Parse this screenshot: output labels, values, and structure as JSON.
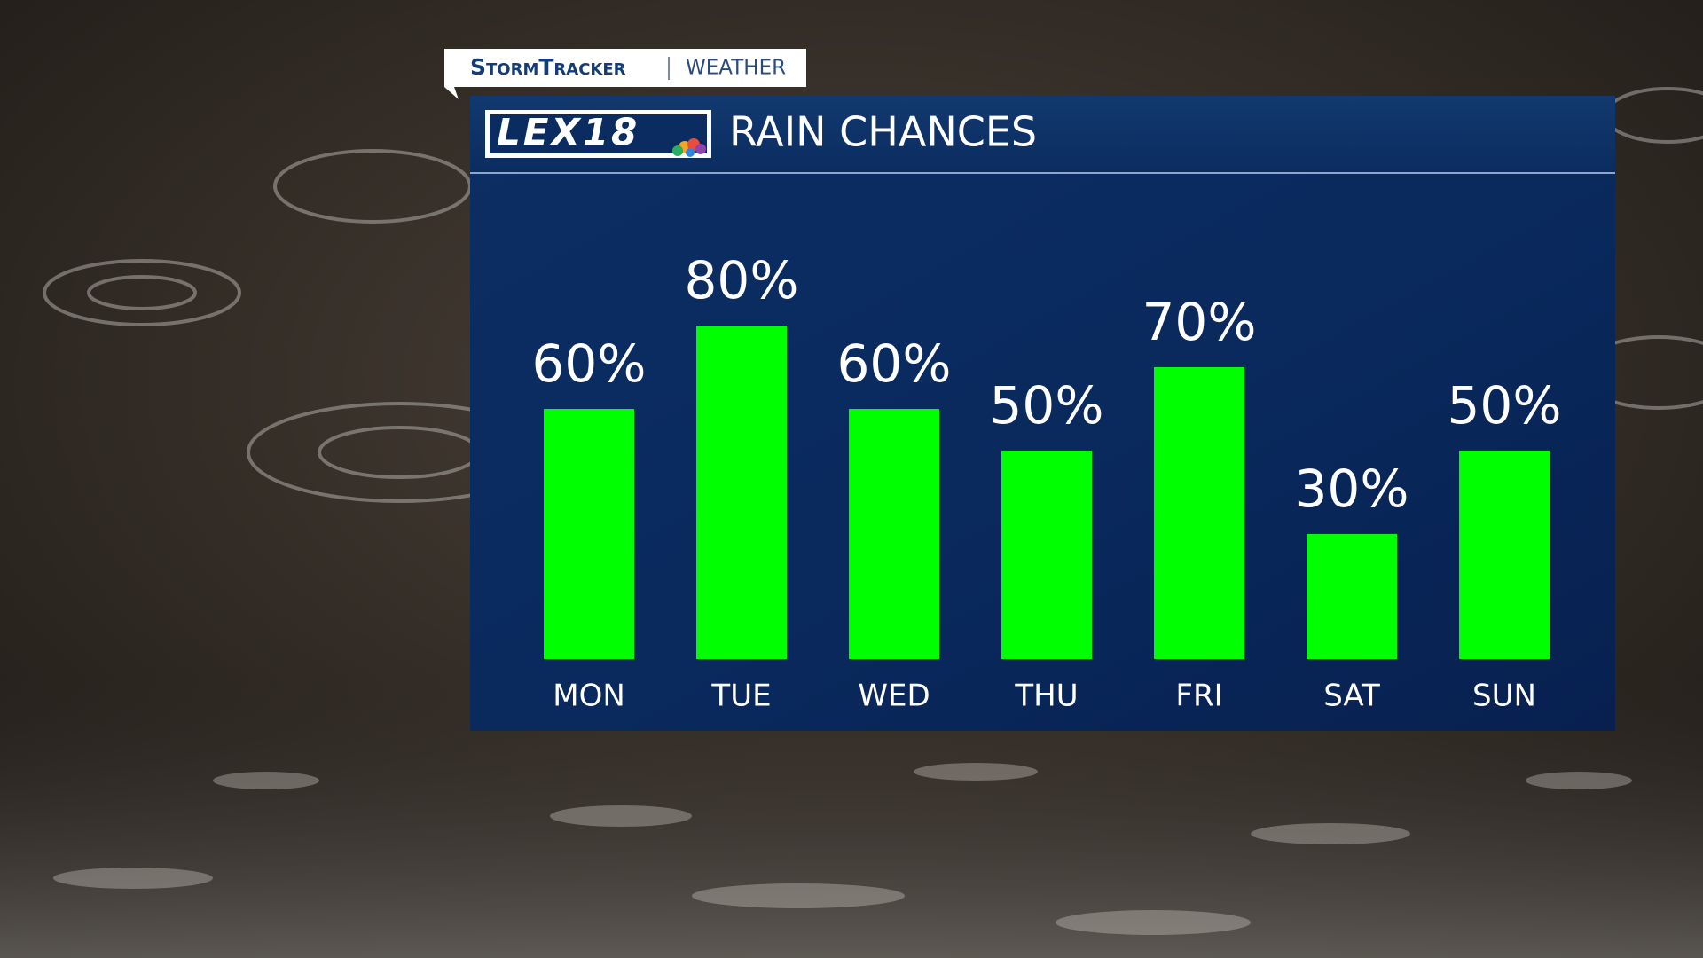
{
  "branding": {
    "tag": "StormTracker",
    "section": "WEATHER",
    "logo": "LEX18"
  },
  "chart_data": {
    "type": "bar",
    "title": "RAIN CHANCES",
    "categories": [
      "MON",
      "TUE",
      "WED",
      "THU",
      "FRI",
      "SAT",
      "SUN"
    ],
    "values": [
      60,
      80,
      60,
      50,
      70,
      30,
      50
    ],
    "value_labels": [
      "60%",
      "80%",
      "60%",
      "50%",
      "70%",
      "30%",
      "50%"
    ],
    "color": "#00ff00"
  }
}
